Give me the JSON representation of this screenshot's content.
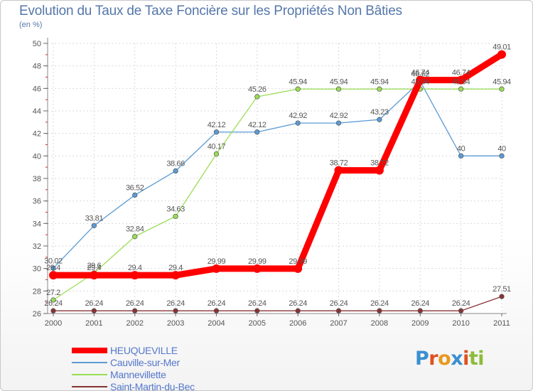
{
  "title": "Evolution du Taux de Taxe Foncière sur les Propriétés Non Bâties",
  "subtitle": "(en %)",
  "logo": {
    "text": "Proxiti",
    "letters": [
      "P",
      "r",
      "o",
      "x",
      "i",
      "t",
      "i"
    ],
    "letter_colors": [
      "#3a8fd0",
      "#e05020",
      "#e89a20",
      "#3a8fd0",
      "#e05020",
      "#8dbb3a",
      "#8dbb3a"
    ]
  },
  "chart_data": {
    "type": "line",
    "title": "Evolution du Taux de Taxe Foncière sur les Propriétés Non Bâties",
    "ylabel": "(en %)",
    "xlabel": "",
    "x": [
      "2000",
      "2001",
      "2002",
      "2003",
      "2004",
      "2005",
      "2006",
      "2007",
      "2008",
      "2009",
      "2010",
      "2011"
    ],
    "ylim": [
      26,
      50
    ],
    "yticks": [
      26,
      28,
      30,
      32,
      34,
      36,
      38,
      40,
      42,
      44,
      46,
      48,
      50
    ],
    "grid": true,
    "legend": "bottom-left",
    "series": [
      {
        "name": "HEUQUEVILLE",
        "color": "#ff0000",
        "values": [
          29.4,
          29.4,
          29.4,
          29.4,
          29.99,
          29.99,
          29.99,
          38.72,
          38.72,
          46.74,
          46.74,
          49.01
        ],
        "labels": [
          "29.4",
          "29.4",
          "29.4",
          "29.4",
          "29.99",
          "29.99",
          "29.99",
          "38.72",
          "38.72",
          "46.74",
          "46.74",
          "49.01"
        ]
      },
      {
        "name": "Cauville-sur-Mer",
        "color": "#5b9bd5",
        "values": [
          30.02,
          33.81,
          36.52,
          38.66,
          42.12,
          42.12,
          42.92,
          42.92,
          43.23,
          46.62,
          40,
          40
        ],
        "labels": [
          "30.02",
          "33.81",
          "36.52",
          "38.66",
          "42.12",
          "42.12",
          "42.92",
          "42.92",
          "43.23",
          "46.62",
          "40",
          "40"
        ]
      },
      {
        "name": "Mannevillette",
        "color": "#99dd55",
        "values": [
          27.2,
          29.6,
          32.84,
          34.63,
          40.17,
          45.26,
          45.94,
          45.94,
          45.94,
          45.94,
          45.94,
          45.94
        ],
        "labels": [
          "27.2",
          "29.6",
          "32.84",
          "34.63",
          "40.17",
          "45.26",
          "45.94",
          "45.94",
          "45.94",
          "45.94",
          "45.94",
          "45.94"
        ]
      },
      {
        "name": "Saint-Martin-du-Bec",
        "color": "#883333",
        "values": [
          26.24,
          26.24,
          26.24,
          26.24,
          26.24,
          26.24,
          26.24,
          26.24,
          26.24,
          26.24,
          26.24,
          27.51
        ],
        "labels": [
          "26.24",
          "26.24",
          "26.24",
          "26.24",
          "26.24",
          "26.24",
          "26.24",
          "26.24",
          "26.24",
          "26.24",
          "26.24",
          "27.51"
        ]
      }
    ]
  }
}
